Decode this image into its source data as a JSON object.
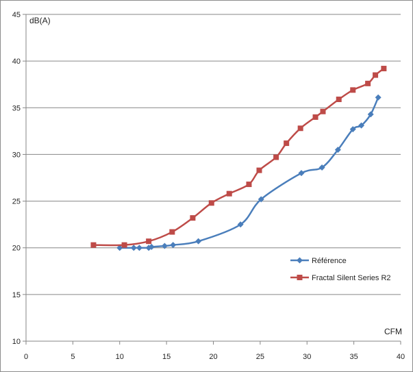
{
  "chart_data": {
    "type": "line",
    "title": "",
    "xlabel": "CFM",
    "ylabel": "dB(A)",
    "xlim": [
      0,
      40
    ],
    "ylim": [
      10,
      45
    ],
    "x_ticks": [
      0,
      5,
      10,
      15,
      20,
      25,
      30,
      35,
      40
    ],
    "y_ticks": [
      10,
      15,
      20,
      25,
      30,
      35,
      40,
      45
    ],
    "grid": "horizontal",
    "legend_position": "right",
    "series": [
      {
        "name": "Référence",
        "color": "#4a7ebb",
        "marker": "diamond",
        "points": [
          [
            10.0,
            20.0
          ],
          [
            11.5,
            20.0
          ],
          [
            12.1,
            20.0
          ],
          [
            13.1,
            20.0
          ],
          [
            13.4,
            20.1
          ],
          [
            14.8,
            20.2
          ],
          [
            15.7,
            20.3
          ],
          [
            18.4,
            20.7
          ],
          [
            22.9,
            22.5
          ],
          [
            25.1,
            25.2
          ],
          [
            29.4,
            28.0
          ],
          [
            31.6,
            28.6
          ],
          [
            33.3,
            30.5
          ],
          [
            34.9,
            32.7
          ],
          [
            35.8,
            33.1
          ],
          [
            36.8,
            34.3
          ],
          [
            37.6,
            36.1
          ]
        ]
      },
      {
        "name": "Fractal Silent Series R2",
        "color": "#be4b48",
        "marker": "square",
        "points": [
          [
            7.2,
            20.3
          ],
          [
            10.5,
            20.3
          ],
          [
            13.1,
            20.7
          ],
          [
            15.6,
            21.7
          ],
          [
            17.8,
            23.2
          ],
          [
            19.8,
            24.8
          ],
          [
            21.7,
            25.8
          ],
          [
            23.8,
            26.8
          ],
          [
            24.9,
            28.3
          ],
          [
            26.7,
            29.7
          ],
          [
            27.8,
            31.2
          ],
          [
            29.3,
            32.8
          ],
          [
            30.9,
            34.0
          ],
          [
            31.7,
            34.6
          ],
          [
            33.4,
            35.9
          ],
          [
            34.9,
            36.9
          ],
          [
            36.5,
            37.6
          ],
          [
            37.3,
            38.5
          ],
          [
            38.2,
            39.2
          ]
        ]
      }
    ]
  }
}
